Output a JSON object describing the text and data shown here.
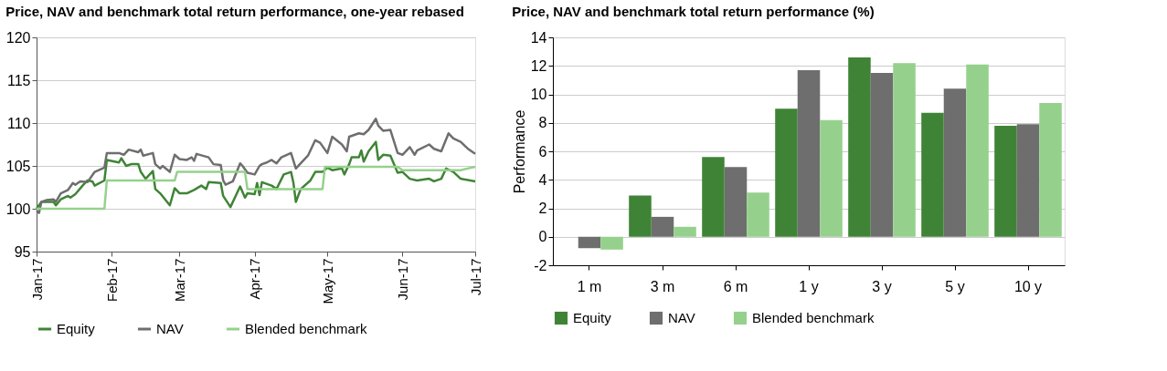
{
  "chart_data": [
    {
      "type": "line",
      "title": "Price, NAV and benchmark total return performance, one-year rebased",
      "xlim": [
        "2017-01-01",
        "2017-07-01"
      ],
      "xticks": [
        {
          "value": "2017-01-01",
          "label": "Jan-17"
        },
        {
          "value": "2017-02-01",
          "label": "Feb-17"
        },
        {
          "value": "2017-03-01",
          "label": "Mar-17"
        },
        {
          "value": "2017-04-01",
          "label": "Apr-17"
        },
        {
          "value": "2017-05-01",
          "label": "May-17"
        },
        {
          "value": "2017-06-01",
          "label": "Jun-17"
        },
        {
          "value": "2017-07-01",
          "label": "Jul-17"
        }
      ],
      "ylim": [
        95,
        120
      ],
      "yticks": [
        95,
        100,
        105,
        110,
        115,
        120
      ],
      "grid": "y",
      "legend": "bottom",
      "line_style": "solid",
      "series": [
        {
          "name": "Equity",
          "color": "#3f8436",
          "x": [
            "2017-01-01",
            "2017-01-03",
            "2017-01-08",
            "2017-01-09",
            "2017-01-11",
            "2017-01-14",
            "2017-01-15",
            "2017-01-17",
            "2017-01-20",
            "2017-01-22",
            "2017-01-24",
            "2017-01-25",
            "2017-01-29",
            "2017-01-30",
            "2017-02-04",
            "2017-02-05",
            "2017-02-07",
            "2017-02-09",
            "2017-02-12",
            "2017-02-13",
            "2017-02-15",
            "2017-02-18",
            "2017-02-19",
            "2017-02-21",
            "2017-02-25",
            "2017-02-27",
            "2017-03-01",
            "2017-03-04",
            "2017-03-07",
            "2017-03-10",
            "2017-03-12",
            "2017-03-13",
            "2017-03-18",
            "2017-03-19",
            "2017-03-22",
            "2017-03-26",
            "2017-03-28",
            "2017-03-29",
            "2017-04-01",
            "2017-04-02",
            "2017-04-03",
            "2017-04-04",
            "2017-04-08",
            "2017-04-10",
            "2017-04-13",
            "2017-04-16",
            "2017-04-17",
            "2017-04-18",
            "2017-04-20",
            "2017-04-24",
            "2017-04-26",
            "2017-04-29",
            "2017-05-01",
            "2017-05-03",
            "2017-05-07",
            "2017-05-08",
            "2017-05-10",
            "2017-05-11",
            "2017-05-14",
            "2017-05-15",
            "2017-05-16",
            "2017-05-18",
            "2017-05-21",
            "2017-05-22",
            "2017-05-24",
            "2017-05-27",
            "2017-05-30",
            "2017-06-01",
            "2017-06-04",
            "2017-06-07",
            "2017-06-12",
            "2017-06-14",
            "2017-06-17",
            "2017-06-19",
            "2017-06-22",
            "2017-06-25",
            "2017-07-01"
          ],
          "values": [
            100.0,
            100.8,
            100.8,
            100.4,
            101.1,
            101.5,
            101.3,
            101.7,
            102.7,
            103.3,
            103.2,
            102.7,
            103.3,
            105.7,
            105.4,
            105.9,
            105.0,
            105.2,
            105.2,
            104.3,
            103.5,
            104.4,
            102.3,
            101.8,
            100.4,
            102.4,
            101.8,
            101.8,
            102.2,
            102.7,
            102.3,
            103.1,
            103.0,
            101.5,
            100.2,
            102.6,
            101.3,
            101.8,
            101.7,
            103.0,
            101.6,
            103.1,
            102.7,
            102.3,
            104.0,
            104.3,
            103.0,
            100.8,
            102.3,
            103.3,
            104.3,
            104.3,
            104.8,
            104.5,
            104.7,
            104.0,
            105.2,
            106.0,
            106.0,
            106.8,
            105.5,
            106.7,
            107.8,
            105.7,
            106.3,
            106.2,
            104.2,
            104.3,
            103.5,
            103.3,
            103.5,
            103.2,
            103.5,
            104.7,
            104.3,
            103.5,
            103.2
          ]
        },
        {
          "name": "NAV",
          "color": "#6e6e6e",
          "x": [
            "2017-01-01",
            "2017-01-02",
            "2017-01-03",
            "2017-01-05",
            "2017-01-08",
            "2017-01-09",
            "2017-01-11",
            "2017-01-14",
            "2017-01-16",
            "2017-01-17",
            "2017-01-19",
            "2017-01-22",
            "2017-01-25",
            "2017-01-29",
            "2017-01-30",
            "2017-02-04",
            "2017-02-06",
            "2017-02-08",
            "2017-02-12",
            "2017-02-13",
            "2017-02-14",
            "2017-02-18",
            "2017-02-19",
            "2017-02-21",
            "2017-02-22",
            "2017-02-25",
            "2017-02-27",
            "2017-03-01",
            "2017-03-04",
            "2017-03-06",
            "2017-03-07",
            "2017-03-08",
            "2017-03-13",
            "2017-03-15",
            "2017-03-18",
            "2017-03-19",
            "2017-03-20",
            "2017-03-23",
            "2017-03-26",
            "2017-03-27",
            "2017-03-29",
            "2017-04-01",
            "2017-04-03",
            "2017-04-04",
            "2017-04-06",
            "2017-04-08",
            "2017-04-10",
            "2017-04-12",
            "2017-04-16",
            "2017-04-18",
            "2017-04-20",
            "2017-04-23",
            "2017-04-26",
            "2017-04-28",
            "2017-05-01",
            "2017-05-03",
            "2017-05-07",
            "2017-05-09",
            "2017-05-10",
            "2017-05-14",
            "2017-05-16",
            "2017-05-18",
            "2017-05-21",
            "2017-05-22",
            "2017-05-24",
            "2017-05-27",
            "2017-05-30",
            "2017-06-01",
            "2017-06-04",
            "2017-06-06",
            "2017-06-07",
            "2017-06-12",
            "2017-06-14",
            "2017-06-17",
            "2017-06-20",
            "2017-06-22",
            "2017-06-25",
            "2017-06-28",
            "2017-07-01"
          ],
          "values": [
            99.8,
            99.5,
            100.8,
            101.0,
            101.1,
            100.8,
            101.8,
            102.2,
            103.0,
            102.8,
            103.2,
            103.1,
            104.3,
            104.8,
            106.5,
            106.5,
            106.3,
            106.9,
            106.6,
            106.9,
            106.2,
            106.5,
            105.2,
            104.7,
            105.0,
            104.3,
            106.3,
            105.8,
            105.7,
            106.0,
            105.6,
            106.4,
            106.0,
            105.2,
            105.1,
            103.3,
            102.8,
            103.2,
            105.3,
            105.0,
            104.2,
            104.0,
            105.0,
            105.2,
            105.4,
            105.7,
            105.3,
            106.0,
            106.5,
            104.7,
            105.3,
            106.2,
            108.0,
            107.7,
            106.5,
            108.4,
            107.5,
            106.7,
            108.4,
            108.8,
            108.7,
            109.2,
            110.5,
            109.7,
            109.1,
            109.2,
            106.5,
            106.3,
            107.2,
            106.3,
            106.8,
            107.5,
            107.0,
            106.7,
            108.8,
            108.2,
            107.8,
            107.0,
            106.4
          ]
        },
        {
          "name": "Blended benchmark",
          "color": "#95d18c",
          "x": [
            "2017-01-01",
            "2017-01-29",
            "2017-01-30",
            "2017-02-27",
            "2017-02-28",
            "2017-03-28",
            "2017-03-29",
            "2017-04-29",
            "2017-04-30",
            "2017-05-30",
            "2017-06-01",
            "2017-06-25",
            "2017-07-01"
          ],
          "values": [
            100.0,
            100.0,
            103.3,
            103.3,
            104.3,
            104.3,
            102.3,
            102.3,
            104.9,
            104.9,
            104.5,
            104.5,
            104.9
          ]
        }
      ]
    },
    {
      "type": "bar",
      "title": "Price, NAV and benchmark total return performance (%)",
      "ylabel": "Performance",
      "categories": [
        "1 m",
        "3 m",
        "6 m",
        "1 y",
        "3 y",
        "5 y",
        "10 y"
      ],
      "ylim": [
        -2,
        14
      ],
      "yticks": [
        -2,
        0,
        2,
        4,
        6,
        8,
        10,
        12,
        14
      ],
      "grid": "y",
      "legend": "bottom",
      "series": [
        {
          "name": "Equity",
          "color": "#3f8436",
          "values": [
            null,
            2.9,
            5.6,
            9.0,
            12.6,
            8.7,
            7.8
          ]
        },
        {
          "name": "NAV",
          "color": "#6e6e6e",
          "values": [
            -0.8,
            1.4,
            4.9,
            11.7,
            11.5,
            10.4,
            7.9
          ]
        },
        {
          "name": "Blended benchmark",
          "color": "#95d18c",
          "values": [
            -0.9,
            0.7,
            3.1,
            8.2,
            12.2,
            12.1,
            9.4
          ]
        }
      ]
    }
  ]
}
